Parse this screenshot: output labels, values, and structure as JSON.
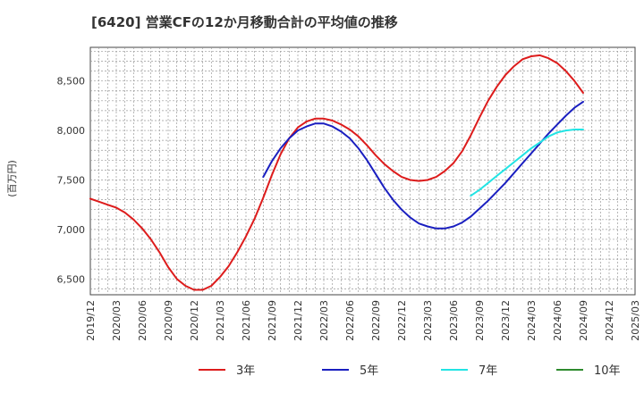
{
  "chart_data": {
    "type": "line",
    "title": "[6420]  営業CFの12か月移動合計の平均値の推移",
    "ylabel": "(百万円)",
    "xlabel": "",
    "ylim": [
      6340,
      8840
    ],
    "yticks": [
      6500,
      7000,
      7500,
      8000,
      8500
    ],
    "ytick_labels": [
      "6,500",
      "7,000",
      "7,500",
      "8,000",
      "8,500"
    ],
    "xlim": [
      "2019-12",
      "2025-03"
    ],
    "xtick_labels": [
      "2019/12",
      "2020/03",
      "2020/06",
      "2020/09",
      "2020/12",
      "2021/03",
      "2021/06",
      "2021/09",
      "2021/12",
      "2022/03",
      "2022/06",
      "2022/09",
      "2022/12",
      "2023/03",
      "2023/06",
      "2023/09",
      "2023/12",
      "2024/03",
      "2024/06",
      "2024/09",
      "2024/12",
      "2025/03"
    ],
    "grid": true,
    "legend_position": "bottom",
    "series": [
      {
        "name": "3年",
        "color": "#dd1c1c",
        "x": [
          "2019-12",
          "2020-01",
          "2020-02",
          "2020-03",
          "2020-04",
          "2020-05",
          "2020-06",
          "2020-07",
          "2020-08",
          "2020-09",
          "2020-10",
          "2020-11",
          "2020-12",
          "2021-01",
          "2021-02",
          "2021-03",
          "2021-04",
          "2021-05",
          "2021-06",
          "2021-07",
          "2021-08",
          "2021-09",
          "2021-10",
          "2021-11",
          "2021-12",
          "2022-01",
          "2022-02",
          "2022-03",
          "2022-04",
          "2022-05",
          "2022-06",
          "2022-07",
          "2022-08",
          "2022-09",
          "2022-10",
          "2022-11",
          "2022-12",
          "2023-01",
          "2023-02",
          "2023-03",
          "2023-04",
          "2023-05",
          "2023-06",
          "2023-07",
          "2023-08",
          "2023-09",
          "2023-10",
          "2023-11",
          "2023-12",
          "2024-01",
          "2024-02",
          "2024-03",
          "2024-04",
          "2024-05",
          "2024-06",
          "2024-07",
          "2024-08",
          "2024-09"
        ],
        "y": [
          7310,
          7280,
          7250,
          7220,
          7170,
          7100,
          7010,
          6900,
          6770,
          6620,
          6500,
          6430,
          6390,
          6390,
          6430,
          6520,
          6630,
          6770,
          6930,
          7110,
          7320,
          7550,
          7760,
          7920,
          8030,
          8090,
          8120,
          8120,
          8100,
          8060,
          8010,
          7940,
          7850,
          7750,
          7660,
          7590,
          7530,
          7500,
          7490,
          7500,
          7530,
          7590,
          7670,
          7790,
          7950,
          8130,
          8300,
          8440,
          8560,
          8650,
          8720,
          8750,
          8760,
          8730,
          8680,
          8600,
          8500,
          8380
        ]
      },
      {
        "name": "5年",
        "color": "#1a1fc0",
        "x": [
          "2021-08",
          "2021-09",
          "2021-10",
          "2021-11",
          "2021-12",
          "2022-01",
          "2022-02",
          "2022-03",
          "2022-04",
          "2022-05",
          "2022-06",
          "2022-07",
          "2022-08",
          "2022-09",
          "2022-10",
          "2022-11",
          "2022-12",
          "2023-01",
          "2023-02",
          "2023-03",
          "2023-04",
          "2023-05",
          "2023-06",
          "2023-07",
          "2023-08",
          "2023-09",
          "2023-10",
          "2023-11",
          "2023-12",
          "2024-01",
          "2024-02",
          "2024-03",
          "2024-04",
          "2024-05",
          "2024-06",
          "2024-07",
          "2024-08",
          "2024-09"
        ],
        "y": [
          7530,
          7690,
          7820,
          7920,
          8000,
          8040,
          8070,
          8070,
          8040,
          7990,
          7920,
          7820,
          7700,
          7560,
          7420,
          7300,
          7200,
          7120,
          7060,
          7030,
          7010,
          7010,
          7030,
          7070,
          7130,
          7210,
          7290,
          7380,
          7470,
          7570,
          7670,
          7770,
          7870,
          7970,
          8060,
          8150,
          8230,
          8290
        ]
      },
      {
        "name": "7年",
        "color": "#22e4e4",
        "x": [
          "2023-08",
          "2023-09",
          "2023-10",
          "2023-11",
          "2023-12",
          "2024-01",
          "2024-02",
          "2024-03",
          "2024-04",
          "2024-05",
          "2024-06",
          "2024-07",
          "2024-08",
          "2024-09"
        ],
        "y": [
          7340,
          7400,
          7470,
          7540,
          7610,
          7680,
          7750,
          7820,
          7880,
          7940,
          7980,
          8000,
          8010,
          8010
        ]
      },
      {
        "name": "10年",
        "color": "#2e8b2e",
        "x": [],
        "y": []
      }
    ]
  }
}
